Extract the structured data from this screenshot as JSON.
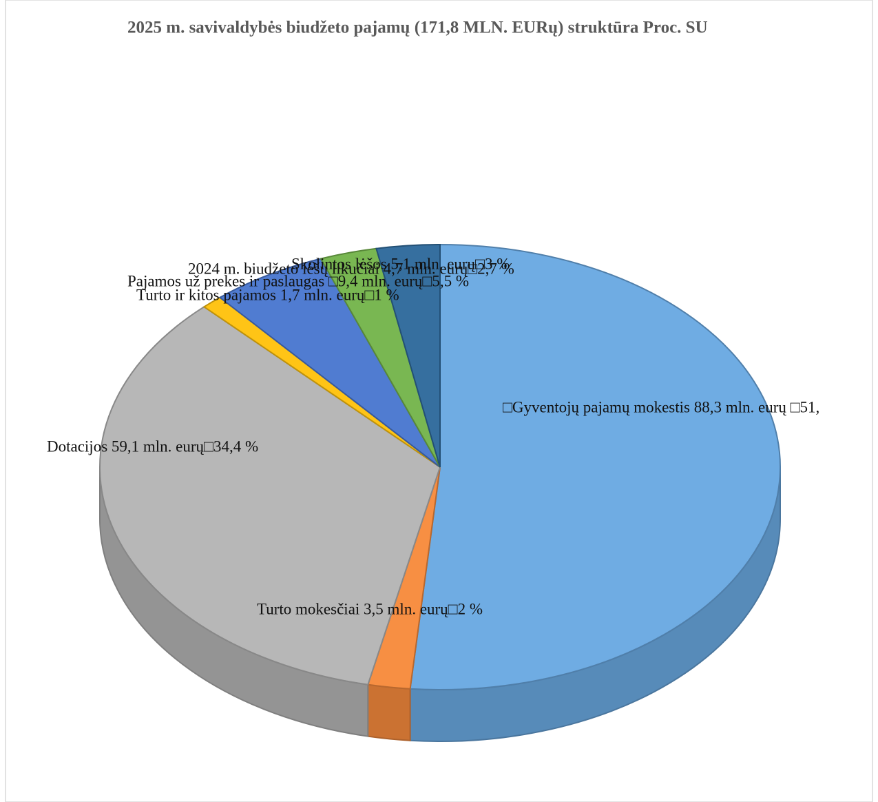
{
  "chart_data": {
    "type": "pie3d",
    "title": "2025 m. savivaldybės biudžeto pajamų (171,8  MLN. EURų)  struktūra Proc. SU",
    "values": [
      51.4,
      2,
      34.4,
      1,
      5.5,
      2.7,
      3
    ],
    "value_labels": [
      "□Gyventojų pajamų mokestis 88,3 mln. eurų □51,",
      "Turto mokesčiai 3,5 mln. eurų□2 %",
      "Dotacijos 59,1 mln. eurų□34,4 %",
      "Turto ir kitos pajamos 1,7 mln. eurų□1 %",
      "Pajamos už prekes ir paslaugas □9,4 mln. eurų□5,5 %",
      "2024 m. biudžeto lėšų likučiai 4,7 mln. eurų□2,7 %",
      "Skolintos lėšos 5,1 mln. eurų□3 %"
    ],
    "colors": [
      "#6aa9e2",
      "#f78b3d",
      "#b5b5b5",
      "#ffc20e",
      "#4a78d0",
      "#75b54c",
      "#2f6a9c"
    ]
  }
}
